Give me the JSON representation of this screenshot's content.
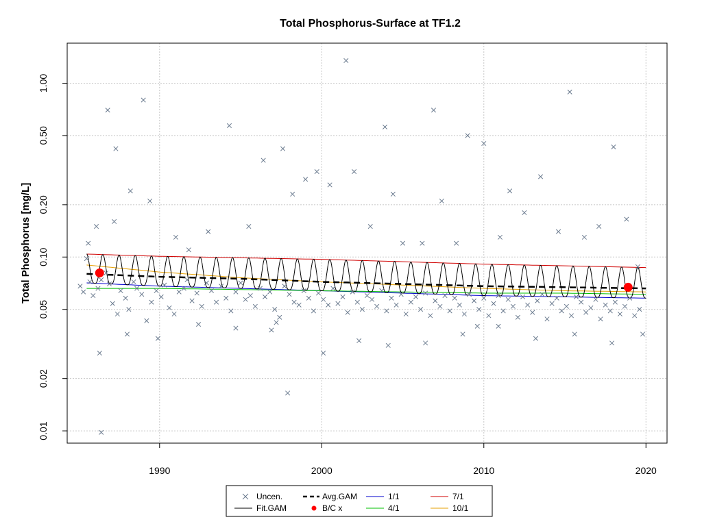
{
  "chart_data": {
    "type": "scatter",
    "title": "Total Phosphorus-Surface at TF1.2",
    "xlabel": "",
    "ylabel": "Total Phosphorus [mg/L]",
    "y_scale": "log",
    "xlim": [
      1984.3,
      2021.3
    ],
    "ylim": [
      0.0085,
      1.7
    ],
    "x_ticks": [
      1990,
      2000,
      2010,
      2020
    ],
    "x_tick_labels": [
      "1990",
      "2000",
      "2010",
      "2020"
    ],
    "y_ticks": [
      0.01,
      0.02,
      0.05,
      0.1,
      0.2,
      0.5,
      1.0
    ],
    "y_tick_labels": [
      "0.01",
      "0.02",
      "0.05",
      "0.10",
      "0.20",
      "0.50",
      "1.00"
    ],
    "grid": true,
    "legend_placement": "bottom-center",
    "legend": [
      {
        "key": "uncen",
        "label": "Uncen.",
        "symbol": "x",
        "color": "#6b7b8f"
      },
      {
        "key": "avg",
        "label": "Avg.GAM",
        "symbol": "dashed-line",
        "color": "#000000"
      },
      {
        "key": "jan",
        "label": "1/1",
        "symbol": "line",
        "color": "#0000cd"
      },
      {
        "key": "jul",
        "label": "7/1",
        "symbol": "line",
        "color": "#d00000"
      },
      {
        "key": "fit",
        "label": "Fit.GAM",
        "symbol": "line",
        "color": "#000000"
      },
      {
        "key": "bc",
        "label": "B/C x",
        "symbol": "filled-circle",
        "color": "#ff0000"
      },
      {
        "key": "apr",
        "label": "4/1",
        "symbol": "line",
        "color": "#00c000"
      },
      {
        "key": "oct",
        "label": "10/1",
        "symbol": "line",
        "color": "#e69f00"
      }
    ],
    "series": [
      {
        "key": "jan",
        "color": "#0000cd",
        "x": [
          1985.5,
          1990,
          1995,
          2000,
          2005,
          2010,
          2015,
          2020
        ],
        "values": [
          0.071,
          0.068,
          0.066,
          0.064,
          0.062,
          0.06,
          0.059,
          0.058
        ]
      },
      {
        "key": "apr",
        "color": "#00c000",
        "x": [
          1985.5,
          1990,
          1995,
          2000,
          2005,
          2010,
          2015,
          2020
        ],
        "values": [
          0.066,
          0.066,
          0.065,
          0.064,
          0.063,
          0.062,
          0.062,
          0.061
        ]
      },
      {
        "key": "jul",
        "color": "#d00000",
        "x": [
          1985.5,
          1990,
          1995,
          2000,
          2005,
          2010,
          2015,
          2020
        ],
        "values": [
          0.104,
          0.101,
          0.099,
          0.097,
          0.094,
          0.091,
          0.089,
          0.087
        ]
      },
      {
        "key": "oct",
        "color": "#e69f00",
        "x": [
          1985.5,
          1990,
          1995,
          2000,
          2005,
          2010,
          2015,
          2020
        ],
        "values": [
          0.09,
          0.082,
          0.076,
          0.072,
          0.069,
          0.066,
          0.064,
          0.063
        ]
      },
      {
        "key": "avg",
        "color": "#000000",
        "x": [
          1985.5,
          1990,
          1995,
          2000,
          2005,
          2010,
          2015,
          2020
        ],
        "values": [
          0.08,
          0.077,
          0.075,
          0.072,
          0.07,
          0.068,
          0.067,
          0.066
        ]
      }
    ],
    "fit_gam": {
      "x_start": 1985.5,
      "x_end": 2020.0,
      "cycles_per_year": 1,
      "trough_series": "jan",
      "peak_series": "jul",
      "color": "#000000"
    },
    "bc_points": {
      "color": "#ff0000",
      "x": [
        1986.3,
        2018.9
      ],
      "values": [
        0.081,
        0.067
      ]
    },
    "uncen_points": {
      "color": "#6b7b8f",
      "x": [
        1985.1,
        1985.3,
        1985.5,
        1985.7,
        1985.9,
        1986.2,
        1986.4,
        1986.7,
        1986.9,
        1987.1,
        1987.4,
        1987.6,
        1987.9,
        1988.1,
        1988.4,
        1988.6,
        1988.9,
        1989.2,
        1989.5,
        1989.8,
        1990.1,
        1990.3,
        1990.6,
        1990.9,
        1991.2,
        1991.5,
        1991.7,
        1992.0,
        1992.3,
        1992.6,
        1992.9,
        1993.2,
        1993.5,
        1993.8,
        1994.1,
        1994.4,
        1994.7,
        1995.0,
        1995.3,
        1995.6,
        1995.9,
        1996.2,
        1996.5,
        1996.8,
        1997.1,
        1997.4,
        1997.7,
        1998.0,
        1998.3,
        1998.6,
        1998.9,
        1999.2,
        1999.5,
        1999.8,
        2000.1,
        2000.4,
        2000.7,
        2001.0,
        2001.3,
        2001.6,
        2001.9,
        2002.2,
        2002.5,
        2002.8,
        2003.1,
        2003.4,
        2003.7,
        2004.0,
        2004.3,
        2004.6,
        2004.9,
        2005.2,
        2005.5,
        2005.8,
        2006.1,
        2006.4,
        2006.7,
        2007.0,
        2007.3,
        2007.6,
        2007.9,
        2008.2,
        2008.5,
        2008.8,
        2009.1,
        2009.4,
        2009.7,
        2010.0,
        2010.3,
        2010.6,
        2010.9,
        2011.2,
        2011.5,
        2011.8,
        2012.1,
        2012.4,
        2012.7,
        2013.0,
        2013.3,
        2013.6,
        2013.9,
        2014.2,
        2014.5,
        2014.8,
        2015.1,
        2015.4,
        2015.7,
        2016.0,
        2016.3,
        2016.6,
        2016.9,
        2017.2,
        2017.5,
        2017.8,
        2018.1,
        2018.4,
        2018.7,
        2019.0,
        2019.3,
        2019.6,
        1986.1,
        1986.8,
        1987.3,
        1988.2,
        1989.0,
        1989.4,
        1991.0,
        1991.8,
        1993.0,
        1994.3,
        1995.5,
        1996.4,
        1997.6,
        1998.2,
        1999.0,
        1999.7,
        2000.5,
        2001.5,
        2002.0,
        2003.0,
        2003.9,
        2004.4,
        2005.0,
        2006.2,
        2006.9,
        2007.4,
        2008.3,
        2009.0,
        2010.0,
        2011.0,
        2011.6,
        2012.5,
        2013.5,
        2014.6,
        2015.3,
        2016.2,
        2017.1,
        2018.0,
        2018.8,
        2019.5,
        1986.3,
        1988.0,
        1989.9,
        1992.4,
        1994.7,
        1997.2,
        2000.1,
        2002.3,
        2004.1,
        2006.4,
        2008.7,
        2010.9,
        2013.2,
        2015.6,
        2017.9,
        2019.8,
        1985.6,
        1987.2,
        1996.9,
        2009.6
      ],
      "values": [
        0.068,
        0.063,
        0.098,
        0.072,
        0.06,
        0.066,
        0.074,
        0.081,
        0.07,
        0.054,
        0.047,
        0.064,
        0.058,
        0.05,
        0.072,
        0.066,
        0.061,
        0.043,
        0.055,
        0.064,
        0.059,
        0.069,
        0.051,
        0.047,
        0.063,
        0.066,
        0.074,
        0.056,
        0.062,
        0.052,
        0.071,
        0.064,
        0.055,
        0.068,
        0.058,
        0.049,
        0.063,
        0.071,
        0.057,
        0.06,
        0.052,
        0.066,
        0.059,
        0.063,
        0.05,
        0.045,
        0.068,
        0.061,
        0.055,
        0.053,
        0.064,
        0.058,
        0.049,
        0.062,
        0.057,
        0.053,
        0.066,
        0.054,
        0.059,
        0.048,
        0.063,
        0.055,
        0.05,
        0.06,
        0.057,
        0.052,
        0.064,
        0.049,
        0.058,
        0.053,
        0.061,
        0.047,
        0.055,
        0.059,
        0.05,
        0.062,
        0.046,
        0.056,
        0.052,
        0.06,
        0.049,
        0.058,
        0.053,
        0.047,
        0.061,
        0.056,
        0.05,
        0.058,
        0.046,
        0.054,
        0.06,
        0.049,
        0.057,
        0.052,
        0.045,
        0.059,
        0.053,
        0.048,
        0.056,
        0.061,
        0.044,
        0.054,
        0.058,
        0.049,
        0.052,
        0.046,
        0.059,
        0.055,
        0.048,
        0.051,
        0.057,
        0.044,
        0.053,
        0.049,
        0.055,
        0.047,
        0.052,
        0.058,
        0.046,
        0.05,
        0.15,
        0.7,
        0.42,
        0.24,
        0.8,
        0.21,
        0.13,
        0.11,
        0.14,
        0.57,
        0.15,
        0.36,
        0.42,
        0.23,
        0.28,
        0.31,
        0.26,
        1.35,
        0.31,
        0.15,
        0.56,
        0.23,
        0.12,
        0.12,
        0.7,
        0.21,
        0.12,
        0.5,
        0.45,
        0.13,
        0.24,
        0.18,
        0.29,
        0.14,
        0.89,
        0.13,
        0.15,
        0.43,
        0.165,
        0.088,
        0.028,
        0.036,
        0.034,
        0.041,
        0.039,
        0.042,
        0.028,
        0.033,
        0.031,
        0.032,
        0.036,
        0.04,
        0.034,
        0.036,
        0.032,
        0.036,
        0.12,
        0.16,
        0.038,
        0.04
      ]
    },
    "uncen_extra": {
      "x": [
        1986.4,
        1997.9
      ],
      "values": [
        0.0098,
        0.0165
      ]
    }
  }
}
